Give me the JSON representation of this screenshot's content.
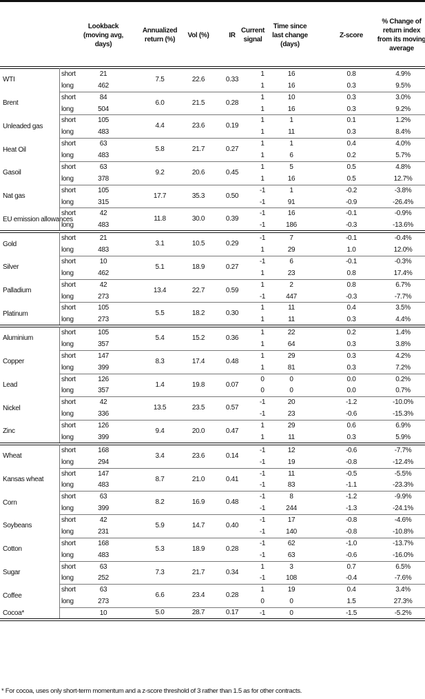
{
  "headers": {
    "lookback": "Lookback (moving avg, days)",
    "annualized": "Annualized return (%)",
    "vol": "Vol (%)",
    "ir": "IR",
    "signal": "Current signal",
    "time": "Time since last change (days)",
    "z": "Z-score",
    "pct": "% Change of return index from its moving average"
  },
  "groups": [
    {
      "commodities": [
        {
          "name": "WTI",
          "annual": "7.5",
          "vol": "22.6",
          "ir": "0.33",
          "rows": [
            {
              "label": "short",
              "lookback": "21",
              "signal": "1",
              "time": "16",
              "z": "0.8",
              "pct": "4.9%"
            },
            {
              "label": "long",
              "lookback": "462",
              "signal": "1",
              "time": "16",
              "z": "0.3",
              "pct": "9.5%"
            }
          ]
        },
        {
          "name": "Brent",
          "annual": "6.0",
          "vol": "21.5",
          "ir": "0.28",
          "rows": [
            {
              "label": "short",
              "lookback": "84",
              "signal": "1",
              "time": "10",
              "z": "0.3",
              "pct": "3.0%"
            },
            {
              "label": "long",
              "lookback": "504",
              "signal": "1",
              "time": "16",
              "z": "0.3",
              "pct": "9.2%"
            }
          ]
        },
        {
          "name": "Unleaded gas",
          "annual": "4.4",
          "vol": "23.6",
          "ir": "0.19",
          "rows": [
            {
              "label": "short",
              "lookback": "105",
              "signal": "1",
              "time": "1",
              "z": "0.1",
              "pct": "1.2%"
            },
            {
              "label": "long",
              "lookback": "483",
              "signal": "1",
              "time": "11",
              "z": "0.3",
              "pct": "8.4%"
            }
          ]
        },
        {
          "name": "Heat Oil",
          "annual": "5.8",
          "vol": "21.7",
          "ir": "0.27",
          "rows": [
            {
              "label": "short",
              "lookback": "63",
              "signal": "1",
              "time": "1",
              "z": "0.4",
              "pct": "4.0%"
            },
            {
              "label": "long",
              "lookback": "483",
              "signal": "1",
              "time": "6",
              "z": "0.2",
              "pct": "5.7%"
            }
          ]
        },
        {
          "name": "Gasoil",
          "annual": "9.2",
          "vol": "20.6",
          "ir": "0.45",
          "rows": [
            {
              "label": "short",
              "lookback": "63",
              "signal": "1",
              "time": "5",
              "z": "0.5",
              "pct": "4.8%"
            },
            {
              "label": "long",
              "lookback": "378",
              "signal": "1",
              "time": "16",
              "z": "0.5",
              "pct": "12.7%"
            }
          ]
        },
        {
          "name": "Nat gas",
          "annual": "17.7",
          "vol": "35.3",
          "ir": "0.50",
          "rows": [
            {
              "label": "short",
              "lookback": "105",
              "signal": "-1",
              "time": "1",
              "z": "-0.2",
              "pct": "-3.8%"
            },
            {
              "label": "long",
              "lookback": "315",
              "signal": "-1",
              "time": "91",
              "z": "-0.9",
              "pct": "-26.4%"
            }
          ]
        },
        {
          "name": "EU emission allowances",
          "annual": "11.8",
          "vol": "30.0",
          "ir": "0.39",
          "rows": [
            {
              "label": "short",
              "lookback": "42",
              "signal": "-1",
              "time": "16",
              "z": "-0.1",
              "pct": "-0.9%"
            },
            {
              "label": "long",
              "lookback": "483",
              "signal": "-1",
              "time": "186",
              "z": "-0.3",
              "pct": "-13.6%"
            }
          ]
        }
      ]
    },
    {
      "commodities": [
        {
          "name": "Gold",
          "annual": "3.1",
          "vol": "10.5",
          "ir": "0.29",
          "rows": [
            {
              "label": "short",
              "lookback": "21",
              "signal": "-1",
              "time": "7",
              "z": "-0.1",
              "pct": "-0.4%"
            },
            {
              "label": "long",
              "lookback": "483",
              "signal": "1",
              "time": "29",
              "z": "1.0",
              "pct": "12.0%"
            }
          ]
        },
        {
          "name": "Silver",
          "annual": "5.1",
          "vol": "18.9",
          "ir": "0.27",
          "rows": [
            {
              "label": "short",
              "lookback": "10",
              "signal": "-1",
              "time": "6",
              "z": "-0.1",
              "pct": "-0.3%"
            },
            {
              "label": "long",
              "lookback": "462",
              "signal": "1",
              "time": "23",
              "z": "0.8",
              "pct": "17.4%"
            }
          ]
        },
        {
          "name": "Palladium",
          "annual": "13.4",
          "vol": "22.7",
          "ir": "0.59",
          "rows": [
            {
              "label": "short",
              "lookback": "42",
              "signal": "1",
              "time": "2",
              "z": "0.8",
              "pct": "6.7%"
            },
            {
              "label": "long",
              "lookback": "273",
              "signal": "-1",
              "time": "447",
              "z": "-0.3",
              "pct": "-7.7%"
            }
          ]
        },
        {
          "name": "Platinum",
          "annual": "5.5",
          "vol": "18.2",
          "ir": "0.30",
          "rows": [
            {
              "label": "short",
              "lookback": "105",
              "signal": "1",
              "time": "11",
              "z": "0.4",
              "pct": "3.5%"
            },
            {
              "label": "long",
              "lookback": "273",
              "signal": "1",
              "time": "11",
              "z": "0.3",
              "pct": "4.4%"
            }
          ]
        }
      ]
    },
    {
      "commodities": [
        {
          "name": "Aluminium",
          "annual": "5.4",
          "vol": "15.2",
          "ir": "0.36",
          "rows": [
            {
              "label": "short",
              "lookback": "105",
              "signal": "1",
              "time": "22",
              "z": "0.2",
              "pct": "1.4%"
            },
            {
              "label": "long",
              "lookback": "357",
              "signal": "1",
              "time": "64",
              "z": "0.3",
              "pct": "3.8%"
            }
          ]
        },
        {
          "name": "Copper",
          "annual": "8.3",
          "vol": "17.4",
          "ir": "0.48",
          "rows": [
            {
              "label": "short",
              "lookback": "147",
              "signal": "1",
              "time": "29",
              "z": "0.3",
              "pct": "4.2%"
            },
            {
              "label": "long",
              "lookback": "399",
              "signal": "1",
              "time": "81",
              "z": "0.3",
              "pct": "7.2%"
            }
          ]
        },
        {
          "name": "Lead",
          "annual": "1.4",
          "vol": "19.8",
          "ir": "0.07",
          "rows": [
            {
              "label": "short",
              "lookback": "126",
              "signal": "0",
              "time": "0",
              "z": "0.0",
              "pct": "0.2%"
            },
            {
              "label": "long",
              "lookback": "357",
              "signal": "0",
              "time": "0",
              "z": "0.0",
              "pct": "0.7%"
            }
          ]
        },
        {
          "name": "Nickel",
          "annual": "13.5",
          "vol": "23.5",
          "ir": "0.57",
          "rows": [
            {
              "label": "short",
              "lookback": "42",
              "signal": "-1",
              "time": "20",
              "z": "-1.2",
              "pct": "-10.0%"
            },
            {
              "label": "long",
              "lookback": "336",
              "signal": "-1",
              "time": "23",
              "z": "-0.6",
              "pct": "-15.3%"
            }
          ]
        },
        {
          "name": "Zinc",
          "annual": "9.4",
          "vol": "20.0",
          "ir": "0.47",
          "rows": [
            {
              "label": "short",
              "lookback": "126",
              "signal": "1",
              "time": "29",
              "z": "0.6",
              "pct": "6.9%"
            },
            {
              "label": "long",
              "lookback": "399",
              "signal": "1",
              "time": "11",
              "z": "0.3",
              "pct": "5.9%"
            }
          ]
        }
      ]
    },
    {
      "commodities": [
        {
          "name": "Wheat",
          "annual": "3.4",
          "vol": "23.6",
          "ir": "0.14",
          "rows": [
            {
              "label": "short",
              "lookback": "168",
              "signal": "-1",
              "time": "12",
              "z": "-0.6",
              "pct": "-7.7%"
            },
            {
              "label": "long",
              "lookback": "294",
              "signal": "-1",
              "time": "19",
              "z": "-0.8",
              "pct": "-12.4%"
            }
          ]
        },
        {
          "name": "Kansas wheat",
          "annual": "8.7",
          "vol": "21.0",
          "ir": "0.41",
          "rows": [
            {
              "label": "short",
              "lookback": "147",
              "signal": "-1",
              "time": "11",
              "z": "-0.5",
              "pct": "-5.5%"
            },
            {
              "label": "long",
              "lookback": "483",
              "signal": "-1",
              "time": "83",
              "z": "-1.1",
              "pct": "-23.3%"
            }
          ]
        },
        {
          "name": "Corn",
          "annual": "8.2",
          "vol": "16.9",
          "ir": "0.48",
          "rows": [
            {
              "label": "short",
              "lookback": "63",
              "signal": "-1",
              "time": "8",
              "z": "-1.2",
              "pct": "-9.9%"
            },
            {
              "label": "long",
              "lookback": "399",
              "signal": "-1",
              "time": "244",
              "z": "-1.3",
              "pct": "-24.1%"
            }
          ]
        },
        {
          "name": "Soybeans",
          "annual": "5.9",
          "vol": "14.7",
          "ir": "0.40",
          "rows": [
            {
              "label": "short",
              "lookback": "42",
              "signal": "-1",
              "time": "17",
              "z": "-0.8",
              "pct": "-4.6%"
            },
            {
              "label": "long",
              "lookback": "231",
              "signal": "-1",
              "time": "140",
              "z": "-0.8",
              "pct": "-10.8%"
            }
          ]
        },
        {
          "name": "Cotton",
          "annual": "5.3",
          "vol": "18.9",
          "ir": "0.28",
          "rows": [
            {
              "label": "short",
              "lookback": "168",
              "signal": "-1",
              "time": "62",
              "z": "-1.0",
              "pct": "-13.7%"
            },
            {
              "label": "long",
              "lookback": "483",
              "signal": "-1",
              "time": "63",
              "z": "-0.6",
              "pct": "-16.0%"
            }
          ]
        },
        {
          "name": "Sugar",
          "annual": "7.3",
          "vol": "21.7",
          "ir": "0.34",
          "rows": [
            {
              "label": "short",
              "lookback": "63",
              "signal": "1",
              "time": "3",
              "z": "0.7",
              "pct": "6.5%"
            },
            {
              "label": "long",
              "lookback": "252",
              "signal": "-1",
              "time": "108",
              "z": "-0.4",
              "pct": "-7.6%"
            }
          ]
        },
        {
          "name": "Coffee",
          "annual": "6.6",
          "vol": "23.4",
          "ir": "0.28",
          "rows": [
            {
              "label": "short",
              "lookback": "63",
              "signal": "1",
              "time": "19",
              "z": "0.4",
              "pct": "3.4%"
            },
            {
              "label": "long",
              "lookback": "273",
              "signal": "0",
              "time": "0",
              "z": "1.5",
              "pct": "27.3%"
            }
          ]
        },
        {
          "name": "Cocoa*",
          "annual": "5.0",
          "vol": "28.7",
          "ir": "0.17",
          "rows": [
            {
              "label": "",
              "lookback": "10",
              "signal": "-1",
              "time": "0",
              "z": "-1.5",
              "pct": "-5.2%"
            }
          ]
        }
      ]
    }
  ],
  "footnote": "* For cocoa, uses only short-term momentum and a z-score threshold of 3 rather than 1.5 as for other contracts."
}
